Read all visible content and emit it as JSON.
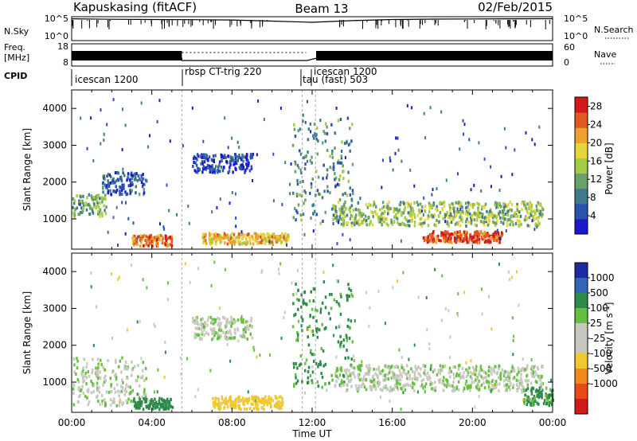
{
  "header": {
    "station": "Kapuskasing (fitACF)",
    "beam": "Beam 13",
    "date": "02/Feb/2015"
  },
  "colors": {
    "power_scale": [
      "#1a1acc",
      "#2a52b0",
      "#3f7a8a",
      "#6aa06a",
      "#a4cc44",
      "#e6d63a",
      "#f0a030",
      "#e05a1e",
      "#d21a1a"
    ],
    "velocity_scale": [
      "#1a2aa0",
      "#3266b8",
      "#2e8a4a",
      "#66c040",
      "#c8c8c0",
      "#c8c8c0",
      "#f0c830",
      "#f08a1e",
      "#e84a1a",
      "#d21a1a"
    ]
  },
  "chart_data": [
    {
      "type": "line",
      "panel": "noise",
      "ylabel": "N.Sky",
      "ytick_labels": [
        "10^5",
        "10^0"
      ],
      "right_label": "N.Search",
      "right_tick_labels": [
        "10^5",
        "10^0"
      ],
      "x": [
        "00:00",
        "02:00",
        "04:00",
        "06:00",
        "08:00",
        "10:00",
        "12:00",
        "14:00",
        "16:00",
        "18:00",
        "20:00",
        "22:00",
        "24:00"
      ],
      "y": [
        120000,
        90000,
        80000,
        70000,
        60000,
        30000,
        15000,
        40000,
        80000,
        100000,
        110000,
        120000,
        130000
      ]
    },
    {
      "type": "line",
      "panel": "frequency",
      "ylabel": "Freq. [MHz]",
      "ytick_labels": [
        "18",
        "8"
      ],
      "right_label": "Nave",
      "right_tick_labels": [
        "60",
        "0"
      ],
      "x": [
        "00:00",
        "05:30",
        "05:30",
        "11:45",
        "12:10",
        "24:00"
      ],
      "y": [
        11,
        11,
        9.8,
        9.8,
        11,
        11
      ]
    },
    {
      "type": "table",
      "panel": "cpid",
      "label": "CPID",
      "segments": [
        {
          "name": "icescan 1200",
          "start": "00:00",
          "end": "05:30"
        },
        {
          "name": "rbsp CT-trig 220",
          "start": "05:30",
          "end": "11:30"
        },
        {
          "name": "tau (fast) 503",
          "start": "11:30",
          "end": "12:10"
        },
        {
          "name": "icescan 1200",
          "start": "12:10",
          "end": "24:00"
        }
      ]
    },
    {
      "type": "heatmap",
      "panel": "power",
      "ylabel": "Slant Range [km]",
      "xlim": [
        0,
        24
      ],
      "ylim": [
        180,
        4500
      ],
      "yticks": [
        1000,
        2000,
        3000,
        4000
      ],
      "colorbar_label": "Power [dB]",
      "colorbar_ticks": [
        4,
        8,
        12,
        16,
        20,
        24,
        28
      ],
      "colorbar_range": [
        0,
        30
      ],
      "features": [
        {
          "t": [
            0.0,
            1.7
          ],
          "range": [
            1100,
            1700
          ],
          "value": 12
        },
        {
          "t": [
            1.5,
            3.7
          ],
          "range": [
            1700,
            2300
          ],
          "value": 6
        },
        {
          "t": [
            3.0,
            5.0
          ],
          "range": [
            300,
            600
          ],
          "value": 24
        },
        {
          "t": [
            6.0,
            9.0
          ],
          "range": [
            2300,
            2800
          ],
          "value": 4
        },
        {
          "t": [
            6.5,
            10.8
          ],
          "range": [
            350,
            650
          ],
          "value": 20
        },
        {
          "t": [
            11.0,
            14.0
          ],
          "range": [
            900,
            3800
          ],
          "value": 10
        },
        {
          "t": [
            13.0,
            23.5
          ],
          "range": [
            850,
            1500
          ],
          "value": 14
        },
        {
          "t": [
            17.5,
            21.5
          ],
          "range": [
            400,
            700
          ],
          "value": 26
        }
      ]
    },
    {
      "type": "heatmap",
      "panel": "velocity",
      "ylabel": "Slant Range [km]",
      "xlabel": "Time UT",
      "xlim": [
        0,
        24
      ],
      "ylim": [
        180,
        4500
      ],
      "yticks": [
        1000,
        2000,
        3000,
        4000
      ],
      "xticks": [
        "00:00",
        "04:00",
        "08:00",
        "12:00",
        "16:00",
        "20:00",
        "00:00"
      ],
      "colorbar_label": "Velocity [m s^-1]",
      "colorbar_ticks": [
        1000,
        500,
        100,
        25,
        -25,
        -100,
        -500,
        -1000
      ],
      "features": [
        {
          "t": [
            0.0,
            3.7
          ],
          "range": [
            400,
            1700
          ],
          "value": 0
        },
        {
          "t": [
            3.0,
            5.0
          ],
          "range": [
            300,
            600
          ],
          "value": 200
        },
        {
          "t": [
            6.0,
            9.0
          ],
          "range": [
            2200,
            2800
          ],
          "value": 0
        },
        {
          "t": [
            7.0,
            10.5
          ],
          "range": [
            300,
            650
          ],
          "value": -300
        },
        {
          "t": [
            11.0,
            14.0
          ],
          "range": [
            900,
            3800
          ],
          "value": 150
        },
        {
          "t": [
            13.0,
            23.5
          ],
          "range": [
            800,
            1500
          ],
          "value": 0
        },
        {
          "t": [
            22.5,
            24.0
          ],
          "range": [
            400,
            900
          ],
          "value": 150
        }
      ]
    }
  ]
}
